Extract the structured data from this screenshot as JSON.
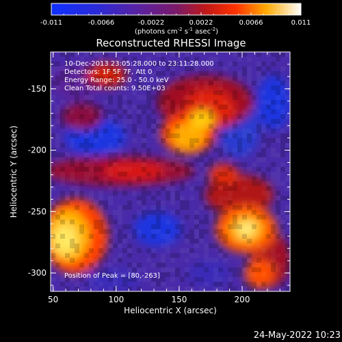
{
  "colorbar": {
    "tick_labels": [
      "-0.011",
      "-0.0066",
      "-0.0022",
      "0.0022",
      "0.0066",
      "0.011"
    ],
    "units_text": "(photons cm",
    "units_exp1": "-2",
    "units_mid": " s",
    "units_exp2": "-1",
    "units_mid2": " asec",
    "units_exp3": "-2",
    "units_close": ")",
    "range": [
      -0.011,
      0.011
    ]
  },
  "image": {
    "title": "Reconstructed RHESSI Image",
    "info_lines": [
      "10-Dec-2013 23:05:28.000 to 23:11:28.000",
      "Detectors: 1F 5F 7F, Att 0",
      "Energy Range: 25.0 - 50.0 keV",
      "Clean     Total counts: 9.50E+03"
    ],
    "peak_label": "Position of Peak = [80,-263]",
    "peak": [
      80,
      -263
    ]
  },
  "axes": {
    "xlabel": "Heliocentric X (arcsec)",
    "ylabel": "Heliocentric Y (arcsec)",
    "x_ticks": [
      "50",
      "100",
      "150",
      "200"
    ],
    "y_ticks": [
      "-150",
      "-200",
      "-250",
      "-300"
    ],
    "x_range": [
      48,
      238
    ],
    "y_range": [
      -315,
      -120
    ]
  },
  "footer": {
    "timestamp": "24-May-2022 10:23"
  }
}
